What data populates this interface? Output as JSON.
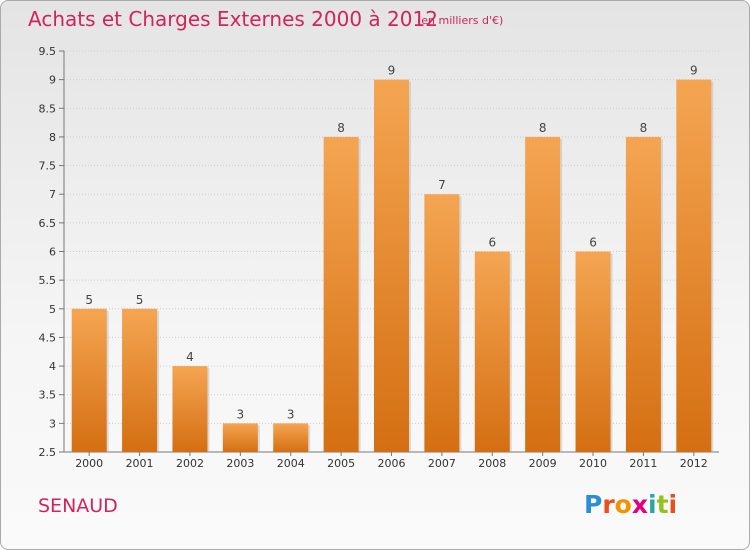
{
  "title": "Achats et Charges Externes 2000 à 2012",
  "subtitle": "(en milliers d'€)",
  "location": "SENAUD",
  "logo": {
    "letters": [
      "P",
      "r",
      "o",
      "x",
      "i",
      "t",
      "i"
    ],
    "colors": [
      "#2a8fd6",
      "#e94e1b",
      "#f39200",
      "#e6007e",
      "#2aa6a6",
      "#95c11f",
      "#e94e1b"
    ]
  },
  "colors": {
    "bar_top": "#f5a552",
    "bar_bottom": "#d46f12",
    "title": "#d0245c",
    "grid": "#cccccc"
  },
  "chart_data": {
    "type": "bar",
    "categories": [
      "2000",
      "2001",
      "2002",
      "2003",
      "2004",
      "2005",
      "2006",
      "2007",
      "2008",
      "2009",
      "2010",
      "2011",
      "2012"
    ],
    "values": [
      5,
      5,
      4,
      3,
      3,
      8,
      9,
      7,
      6,
      8,
      6,
      8,
      9
    ],
    "data_labels": [
      "5",
      "5",
      "4",
      "3",
      "3",
      "8",
      "9",
      "7",
      "6",
      "8",
      "6",
      "8",
      "9"
    ],
    "yticks": [
      "2.5",
      "3",
      "3.5",
      "4",
      "4.5",
      "5",
      "5.5",
      "6",
      "6.5",
      "7",
      "7.5",
      "8",
      "8.5",
      "9",
      "9.5"
    ],
    "ylim": [
      2.5,
      9.5
    ],
    "grid": true
  }
}
